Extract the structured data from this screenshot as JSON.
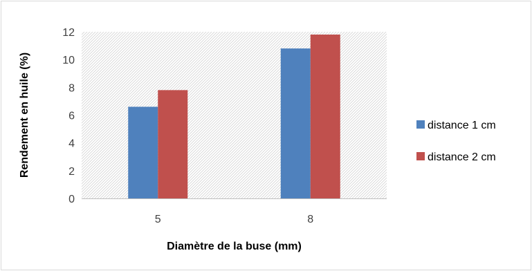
{
  "chart_data": {
    "type": "bar",
    "categories": [
      "5",
      "8"
    ],
    "series": [
      {
        "name": "distance 1 cm",
        "values": [
          6.6,
          10.8
        ],
        "color": "#4f81bd"
      },
      {
        "name": "distance 2 cm",
        "values": [
          7.8,
          11.8
        ],
        "color": "#c0504d"
      }
    ],
    "title": "",
    "xlabel": "Diamètre de la buse (mm)",
    "ylabel": "Rendement en huile (%)",
    "ylim": [
      0,
      12
    ],
    "yticks": [
      "0",
      "2",
      "4",
      "6",
      "8",
      "10",
      "12"
    ],
    "grid": false,
    "plot_background": "diagonal-hatch",
    "legend_position": "right"
  }
}
